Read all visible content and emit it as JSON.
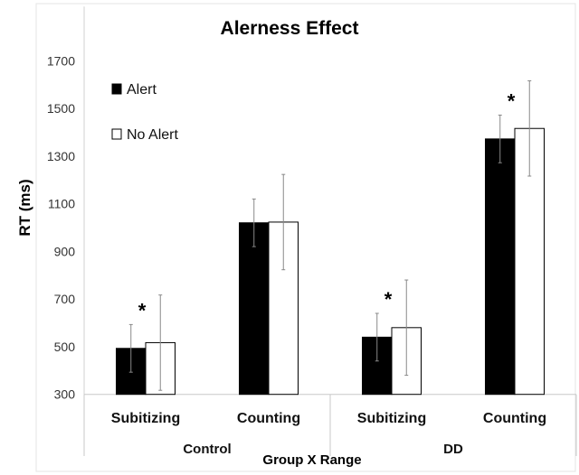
{
  "chart_data": {
    "type": "bar",
    "title": "Alerness Effect",
    "xlabel": "Group X Range",
    "ylabel": "RT (ms)",
    "ylim": [
      300,
      1700
    ],
    "yticks": [
      300,
      500,
      700,
      900,
      1100,
      1300,
      1500,
      1700
    ],
    "categories": [
      "Subitizing",
      "Counting",
      "Subitizing",
      "Counting"
    ],
    "groups": [
      {
        "label": "Control",
        "categories": [
          0,
          1
        ]
      },
      {
        "label": "DD",
        "categories": [
          2,
          3
        ]
      }
    ],
    "series": [
      {
        "name": "Alert",
        "color": "#000000",
        "values": [
          493,
          1020,
          540,
          1372
        ],
        "errors": [
          100,
          100,
          100,
          100
        ]
      },
      {
        "name": "No Alert",
        "color": "#ffffff",
        "values": [
          517,
          1023,
          580,
          1416
        ],
        "errors": [
          200,
          200,
          200,
          200
        ]
      }
    ],
    "significance": [
      {
        "category": 0,
        "label": "*"
      },
      {
        "category": 2,
        "label": "*"
      },
      {
        "category": 3,
        "label": "*"
      }
    ],
    "legend": "top-left",
    "grid": false
  }
}
